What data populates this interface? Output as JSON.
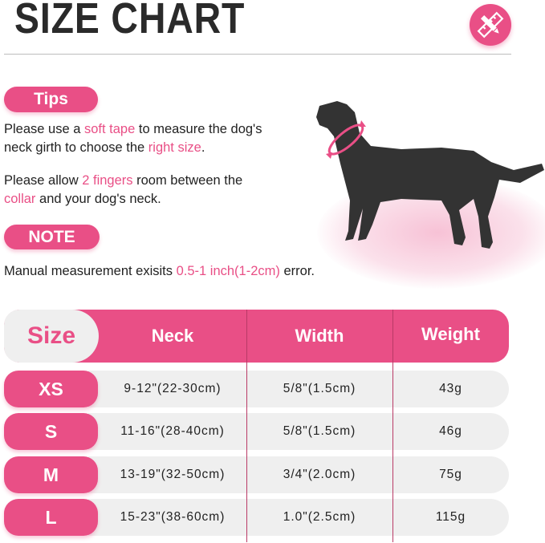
{
  "title": "SIZE CHART",
  "icon": "ruler-pencil-icon",
  "accent": "#e94f86",
  "tips": {
    "label": "Tips",
    "line1": [
      "Please use a ",
      "soft tape",
      " to measure the dog's"
    ],
    "line2": [
      "neck girth to choose the ",
      "right size",
      "."
    ],
    "line3": [
      "Please allow ",
      "2 fingers",
      " room between the"
    ],
    "line4": [
      "collar",
      " and your dog's neck."
    ]
  },
  "note": {
    "label": "NOTE",
    "text": [
      "Manual measurement exisits ",
      "0.5-1 inch(1-2cm)",
      " error."
    ]
  },
  "table": {
    "headers": [
      "Size",
      "Neck",
      "Width",
      "Weight"
    ],
    "rows": [
      {
        "size": "XS",
        "neck": "9-12\"(22-30cm)",
        "width": "5/8\"(1.5cm)",
        "weight": "43g"
      },
      {
        "size": "S",
        "neck": "11-16\"(28-40cm)",
        "width": "5/8\"(1.5cm)",
        "weight": "46g"
      },
      {
        "size": "M",
        "neck": "13-19\"(32-50cm)",
        "width": "3/4\"(2.0cm)",
        "weight": "75g"
      },
      {
        "size": "L",
        "neck": "15-23\"(38-60cm)",
        "width": "1.0\"(2.5cm)",
        "weight": "115g"
      }
    ]
  }
}
